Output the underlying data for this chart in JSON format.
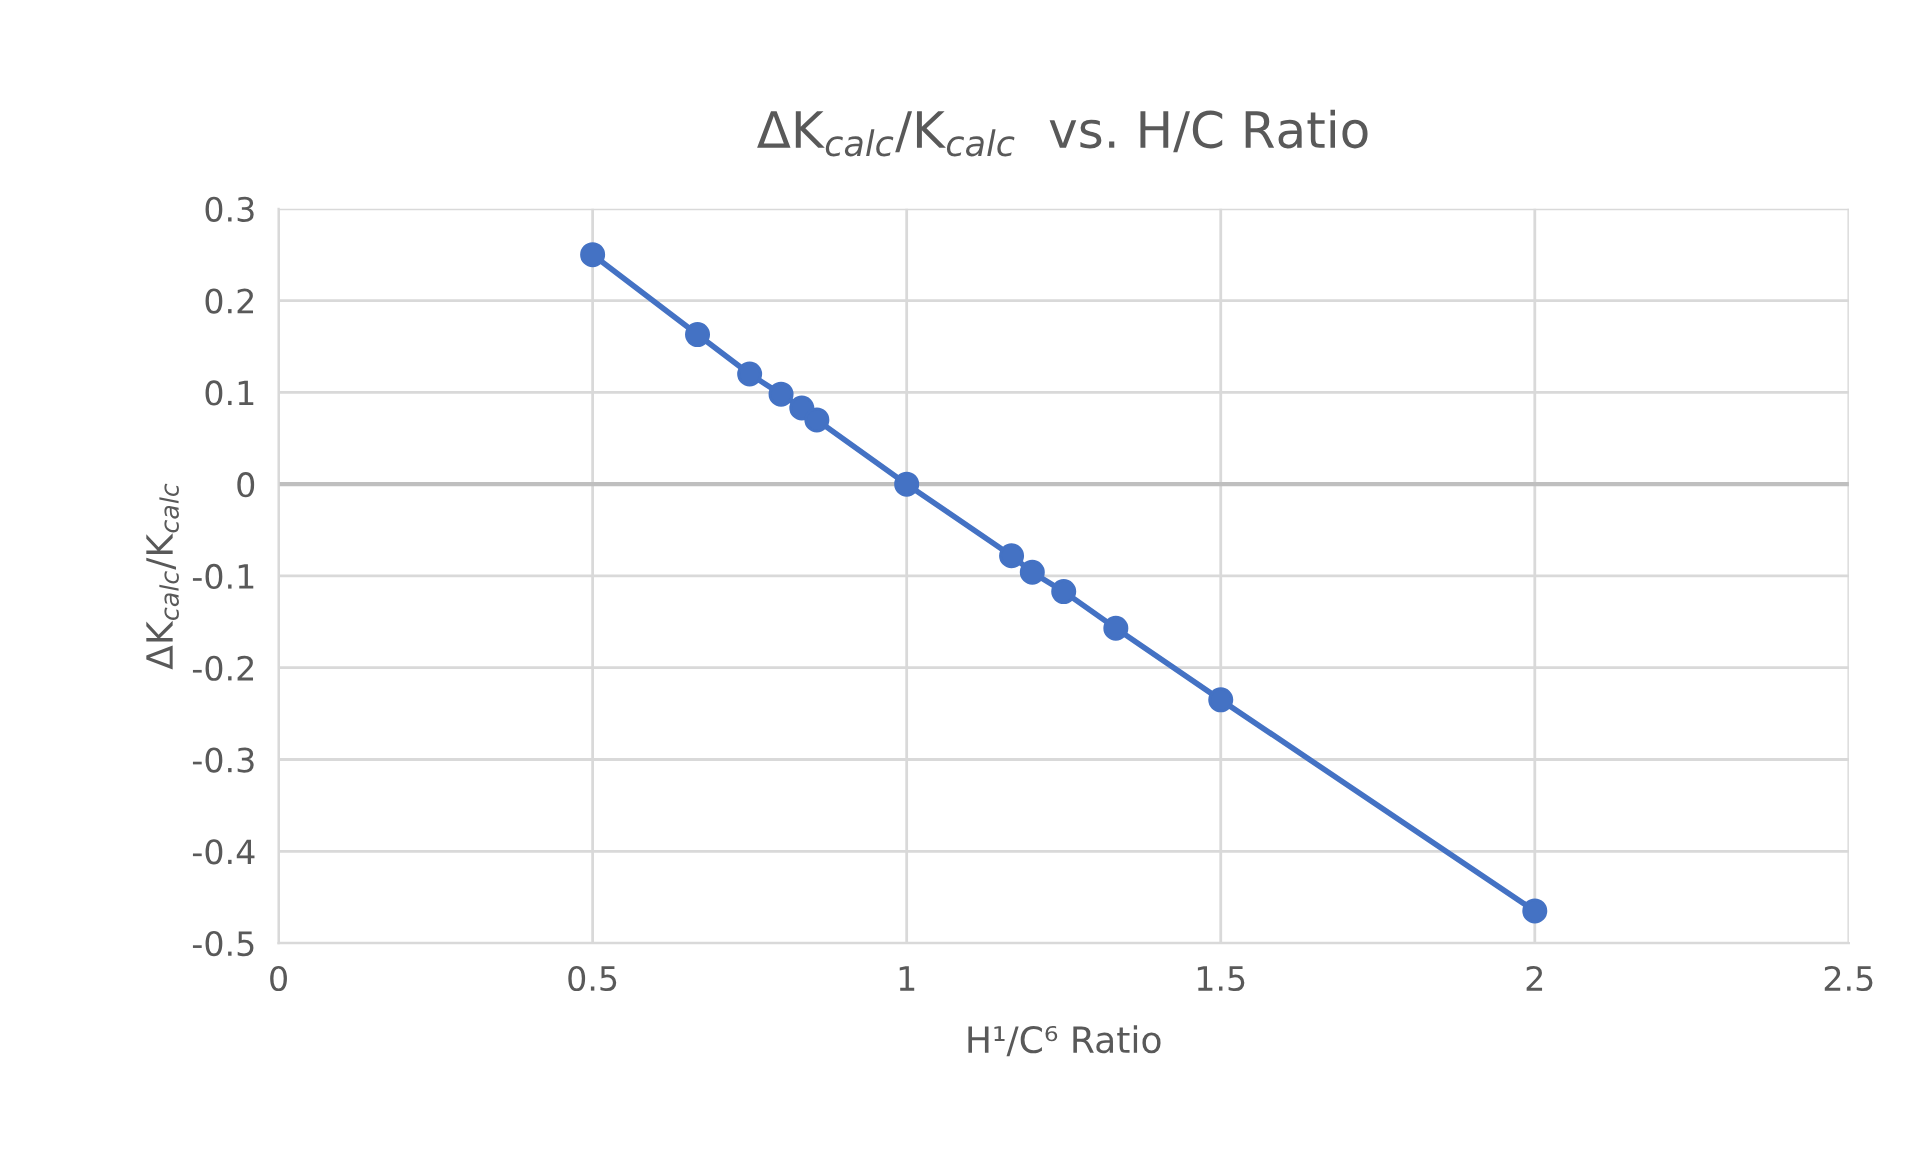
{
  "chart_data": {
    "type": "line",
    "title": "ΔK$_{calc}$/K$_{calc}$  vs. H/C Ratio",
    "xlabel": "H¹/C⁶ Ratio",
    "ylabel": "ΔK$_{calc}$/K$_{calc}$",
    "series": [
      {
        "color": "#4472c4",
        "x": [
          0.5,
          0.667,
          0.75,
          0.8,
          0.833,
          0.857,
          1.0,
          1.167,
          1.2,
          1.25,
          1.333,
          1.5,
          2.0
        ],
        "values": [
          0.25,
          0.163,
          0.12,
          0.098,
          0.083,
          0.07,
          0.0,
          -0.078,
          -0.096,
          -0.117,
          -0.157,
          -0.235,
          -0.465
        ]
      }
    ],
    "marker": "circle",
    "line_style": "solid",
    "grid": true,
    "xlim": [
      0,
      2.5
    ],
    "xticks": [
      0,
      0.5,
      1,
      1.5,
      2,
      2.5
    ],
    "ylim": [
      -0.5,
      0.3
    ],
    "yticks": [
      {
        "value": -0.5,
        "label": "-0.5"
      },
      {
        "value": -0.4,
        "label": "-0.4"
      },
      {
        "value": -0.3,
        "label": "-0.3"
      },
      {
        "value": -0.2,
        "label": "-0.2"
      },
      {
        "value": -0.1,
        "label": "-0.1"
      },
      0,
      0.1,
      0.2,
      0.3
    ],
    "ref_lines": [
      {
        "axis": "y",
        "value": 0,
        "color": "#bfbfbf"
      }
    ]
  }
}
